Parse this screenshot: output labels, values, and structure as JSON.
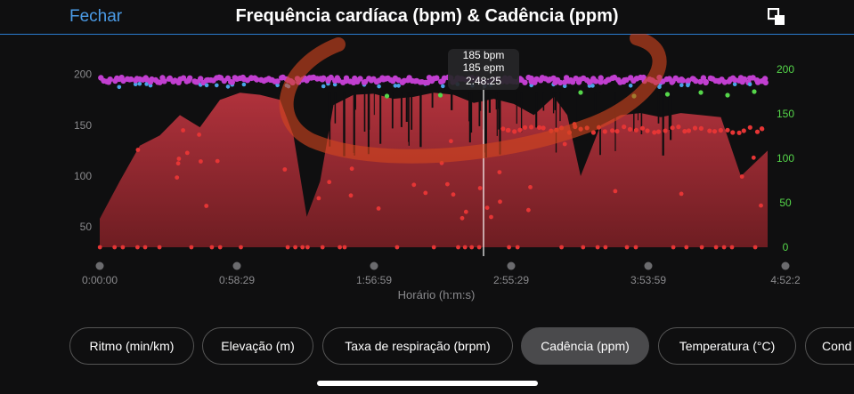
{
  "header": {
    "close_label": "Fechar",
    "title": "Frequência cardíaca (bpm) & Cadência (ppm)"
  },
  "tooltip": {
    "line1": "185 bpm",
    "line2": "185 epm",
    "line3": "2:48:25"
  },
  "chart_data": {
    "type": "area",
    "xlabel": "Horário (h:m:s)",
    "x_ticks": [
      "0:00:00",
      "0:58:29",
      "1:56:59",
      "2:55:29",
      "3:53:59",
      "4:52:2"
    ],
    "x_range_seconds": [
      0,
      17545
    ],
    "cursor_x": "2:48:25",
    "left_axis": {
      "label": "",
      "ticks": [
        50,
        100,
        150,
        200
      ],
      "range": [
        30,
        205
      ]
    },
    "right_axis": {
      "label": "",
      "ticks": [
        0,
        50,
        100,
        150,
        200
      ],
      "range": [
        0,
        200
      ]
    },
    "series": [
      {
        "name": "Frequência cardíaca",
        "axis": "left",
        "x": [
          0.0,
          0.03,
          0.06,
          0.09,
          0.12,
          0.15,
          0.18,
          0.21,
          0.24,
          0.27,
          0.29,
          0.31,
          0.33,
          0.35,
          0.38,
          0.41,
          0.44,
          0.47,
          0.5,
          0.53,
          0.56,
          0.59,
          0.62,
          0.65,
          0.68,
          0.7,
          0.72,
          0.75,
          0.78,
          0.81,
          0.84,
          0.87,
          0.9,
          0.93,
          0.96,
          1.0
        ],
        "values": [
          58,
          95,
          130,
          140,
          160,
          148,
          175,
          182,
          180,
          175,
          140,
          60,
          95,
          170,
          180,
          181,
          176,
          178,
          182,
          180,
          172,
          176,
          171,
          160,
          178,
          160,
          100,
          150,
          160,
          162,
          158,
          162,
          160,
          158,
          100,
          125
        ]
      },
      {
        "name": "Cadência",
        "axis": "right",
        "bands": [
          {
            "level": 188,
            "from": 0.0,
            "to": 1.0
          },
          {
            "level": 132,
            "from": 0.6,
            "to": 1.0
          },
          {
            "level": 0,
            "from": 0.0,
            "to": 1.0
          }
        ]
      }
    ],
    "grid": false,
    "legend": "none"
  },
  "tabs": [
    {
      "label": "Ritmo (min/km)",
      "active": false
    },
    {
      "label": "Elevação (m)",
      "active": false
    },
    {
      "label": "Taxa de respiração (brpm)",
      "active": false
    },
    {
      "label": "Cadência (ppm)",
      "active": true
    },
    {
      "label": "Temperatura (°C)",
      "active": false
    },
    {
      "label": "Cond",
      "active": false
    }
  ],
  "colors": {
    "heart_rate_fill": "#6e1d22",
    "heart_rate_top": "#b0323c",
    "cadence_magenta": "#c13fd0",
    "cadence_red": "#e53535",
    "cadence_green": "#55d64a",
    "cadence_blue": "#4aa3e8",
    "right_axis_text": "#55d64a",
    "annotation": "#d2451e",
    "accent": "#2a7bd0"
  }
}
